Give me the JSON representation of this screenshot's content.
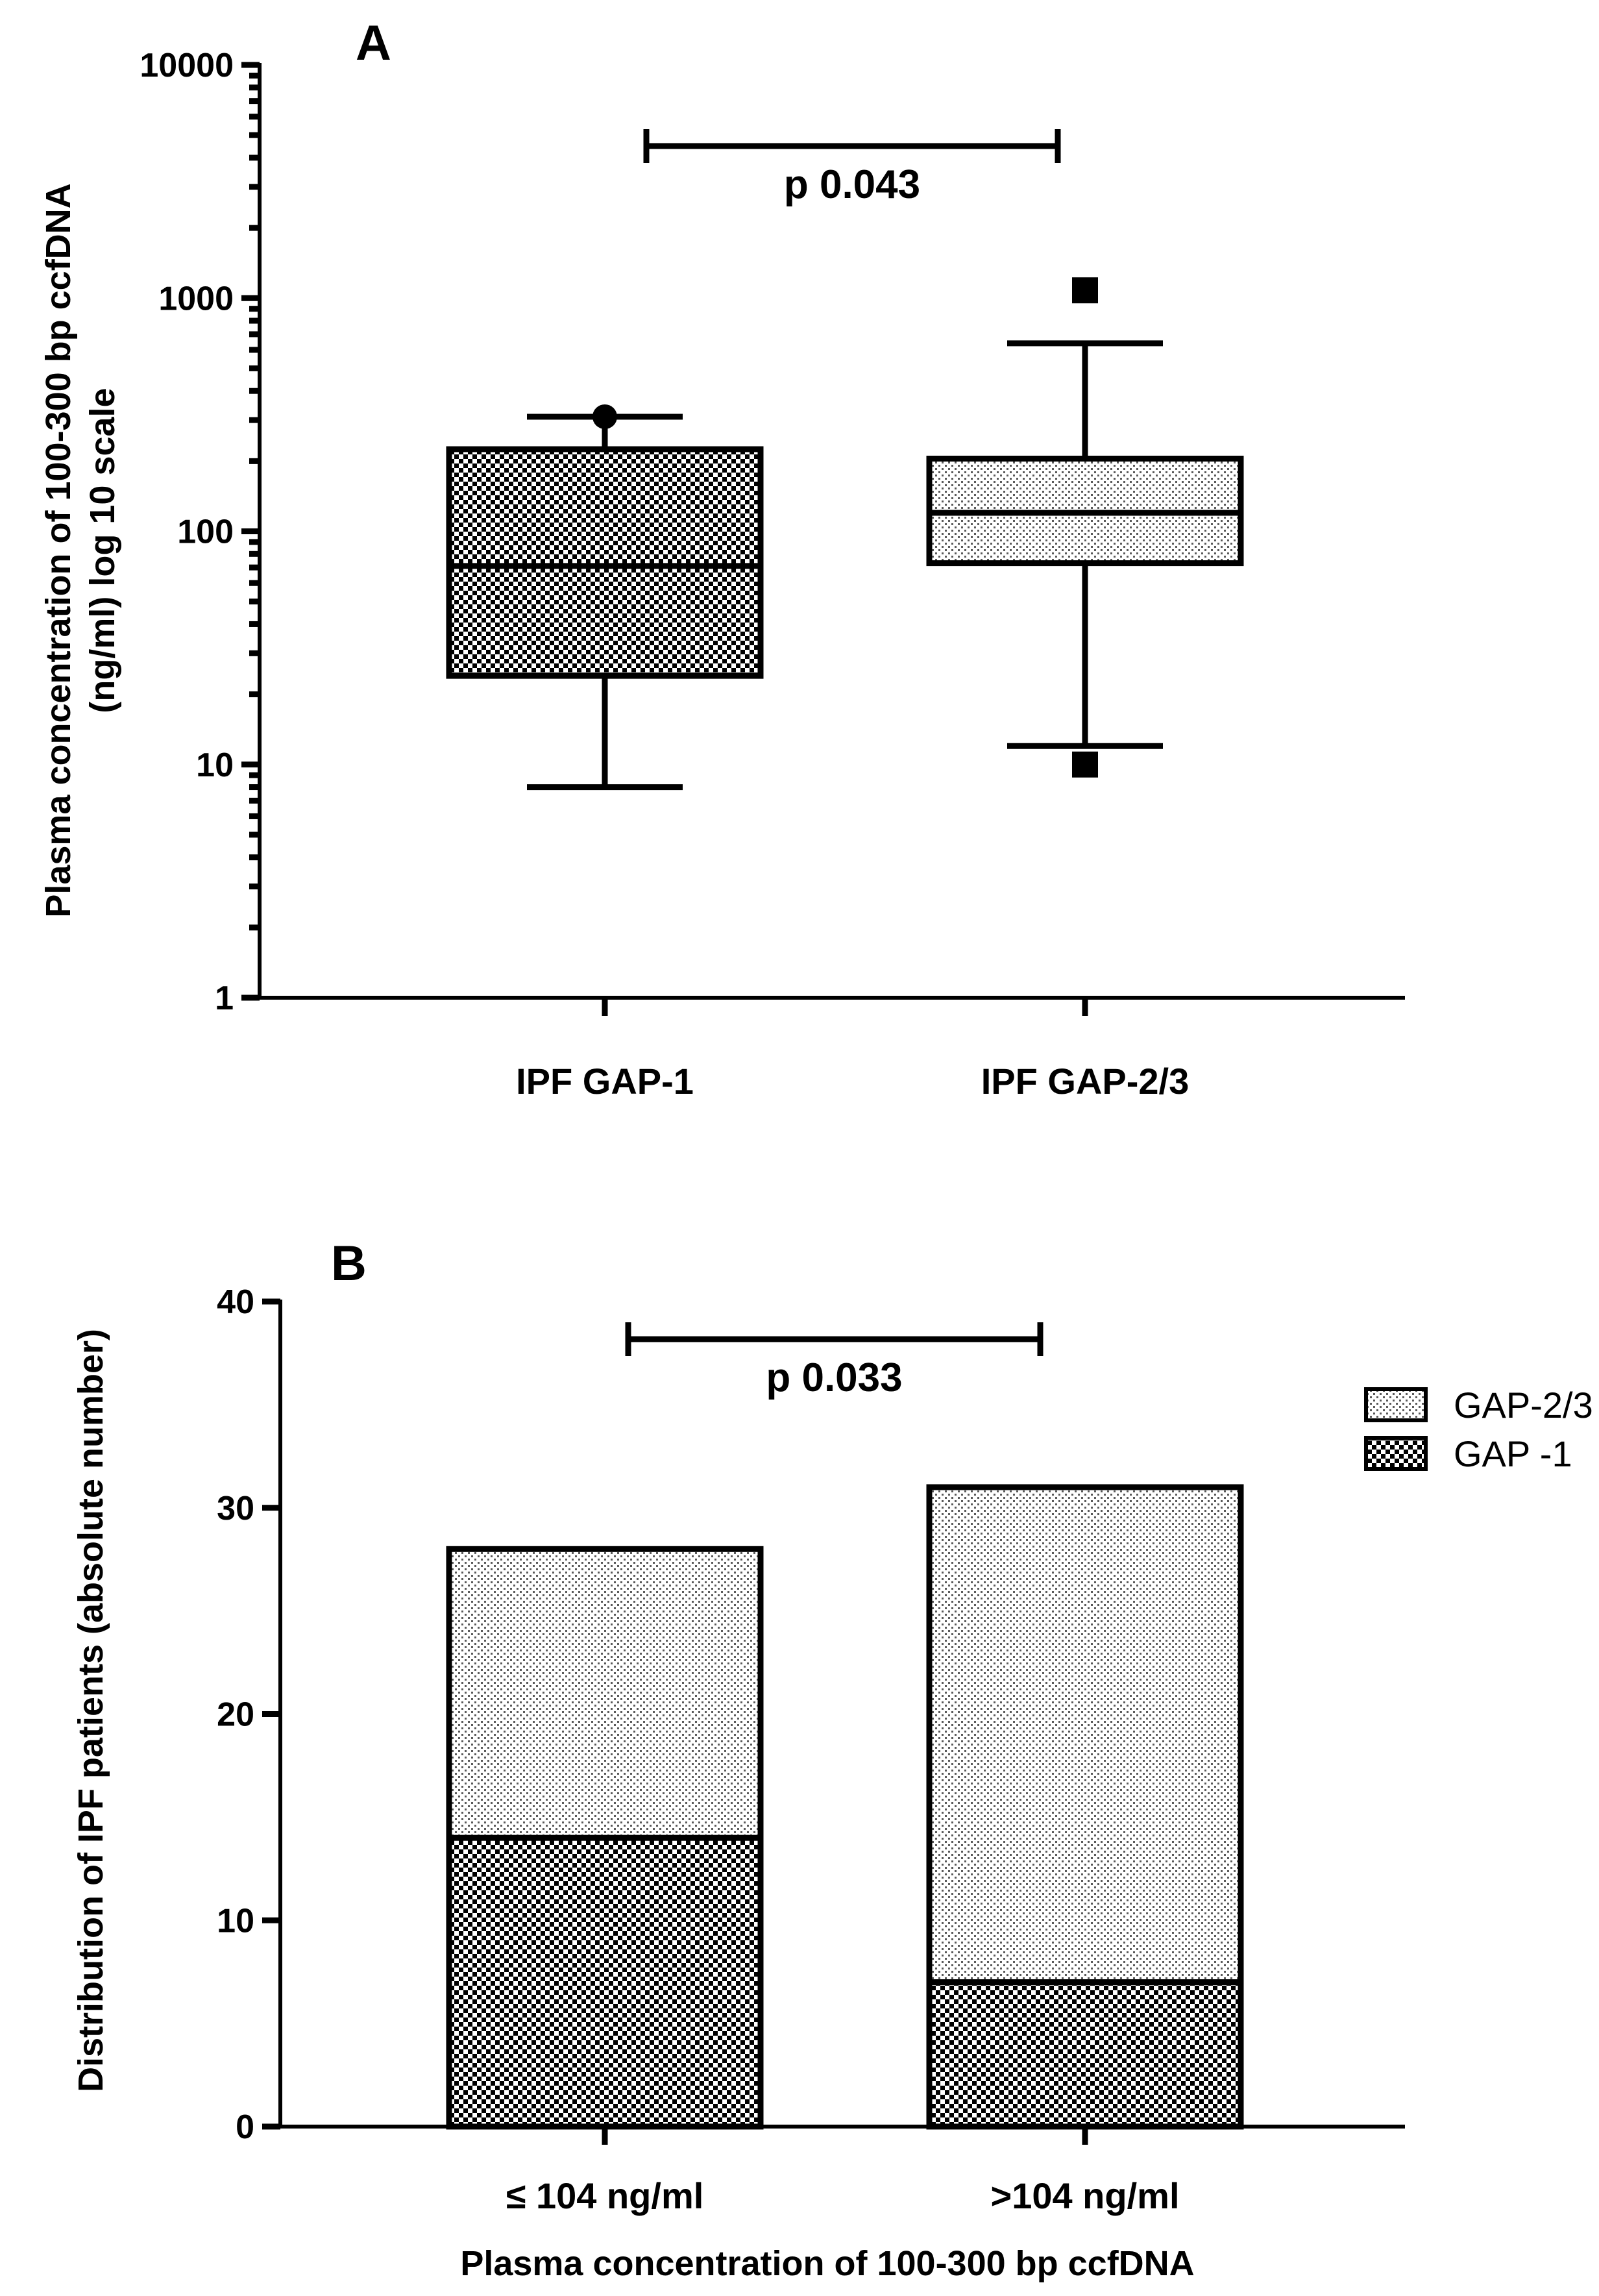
{
  "chart_data": [
    {
      "panel": "A",
      "type": "box",
      "scale": "log10",
      "ylabel_line1": "Plasma concentration of 100-300 bp ccfDNA",
      "ylabel_line2": "(ng/ml) log 10 scale",
      "ylim": [
        1,
        10000
      ],
      "yticks": [
        {
          "value": 1,
          "label": "1"
        },
        {
          "value": 10,
          "label": "10"
        },
        {
          "value": 100,
          "label": "100"
        },
        {
          "value": 1000,
          "label": "1000"
        },
        {
          "value": 10000,
          "label": "10000"
        }
      ],
      "categories": [
        "IPF GAP-1",
        "IPF GAP-2/3"
      ],
      "boxes": [
        {
          "name": "IPF GAP-1",
          "pattern": "checker",
          "whisker_low": 8,
          "q1": 24,
          "median": 71,
          "q3": 225,
          "whisker_high": 310,
          "outliers": [
            {
              "value": 310,
              "marker": "circle"
            }
          ]
        },
        {
          "name": "IPF GAP-2/3",
          "pattern": "dots",
          "whisker_low": 12,
          "q1": 73,
          "median": 120,
          "q3": 205,
          "whisker_high": 640,
          "outliers": [
            {
              "value": 1080,
              "marker": "square"
            },
            {
              "value": 10,
              "marker": "square"
            }
          ]
        }
      ],
      "significance": {
        "label": "p 0.043",
        "from": "IPF GAP-1",
        "to": "IPF GAP-2/3"
      }
    },
    {
      "panel": "B",
      "type": "stacked_bar",
      "ylabel": "Distribution of IPF patients (absolute number)",
      "xlabel": "Plasma concentration of 100-300 bp ccfDNA",
      "ylim": [
        0,
        40
      ],
      "yticks": [
        {
          "value": 0,
          "label": "0"
        },
        {
          "value": 10,
          "label": "10"
        },
        {
          "value": 20,
          "label": "20"
        },
        {
          "value": 30,
          "label": "30"
        },
        {
          "value": 40,
          "label": "40"
        }
      ],
      "categories": [
        "≤ 104 ng/ml",
        ">104 ng/ml"
      ],
      "series": [
        {
          "name": "GAP -1",
          "pattern": "checker",
          "values": [
            14,
            7
          ]
        },
        {
          "name": "GAP-2/3",
          "pattern": "dots",
          "values": [
            14,
            24
          ]
        }
      ],
      "legend": [
        {
          "label": "GAP-2/3",
          "pattern": "dots"
        },
        {
          "label": "GAP -1",
          "pattern": "checker"
        }
      ],
      "significance": {
        "label": "p 0.033",
        "from": "≤ 104 ng/ml",
        "to": ">104 ng/ml"
      }
    }
  ]
}
